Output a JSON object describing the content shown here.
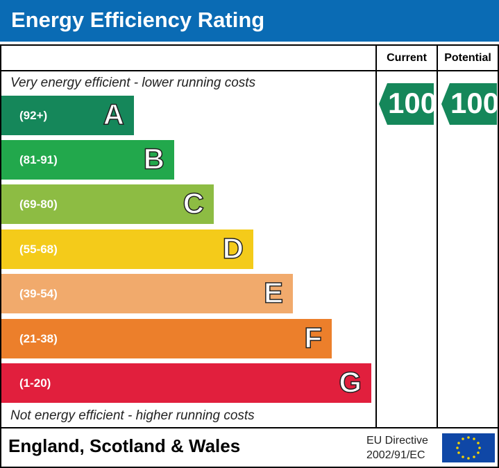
{
  "header": {
    "title": "Energy Efficiency Rating"
  },
  "columns": {
    "current": "Current",
    "potential": "Potential"
  },
  "top_note": "Very energy efficient - lower running costs",
  "bottom_note": "Not energy efficient - higher running costs",
  "bands": [
    {
      "range": "(92+)",
      "letter": "A",
      "color": "#15875a"
    },
    {
      "range": "(81-91)",
      "letter": "B",
      "color": "#22a84c"
    },
    {
      "range": "(69-80)",
      "letter": "C",
      "color": "#8dbc43"
    },
    {
      "range": "(55-68)",
      "letter": "D",
      "color": "#f4cb1a"
    },
    {
      "range": "(39-54)",
      "letter": "E",
      "color": "#f1aa6c"
    },
    {
      "range": "(21-38)",
      "letter": "F",
      "color": "#ec7f2b"
    },
    {
      "range": "(1-20)",
      "letter": "G",
      "color": "#e11f3d"
    }
  ],
  "ratings": {
    "current": 100,
    "potential": 100,
    "color": "#15875a"
  },
  "footer": {
    "region": "England, Scotland & Wales",
    "directive_line1": "EU Directive",
    "directive_line2": "2002/91/EC"
  }
}
